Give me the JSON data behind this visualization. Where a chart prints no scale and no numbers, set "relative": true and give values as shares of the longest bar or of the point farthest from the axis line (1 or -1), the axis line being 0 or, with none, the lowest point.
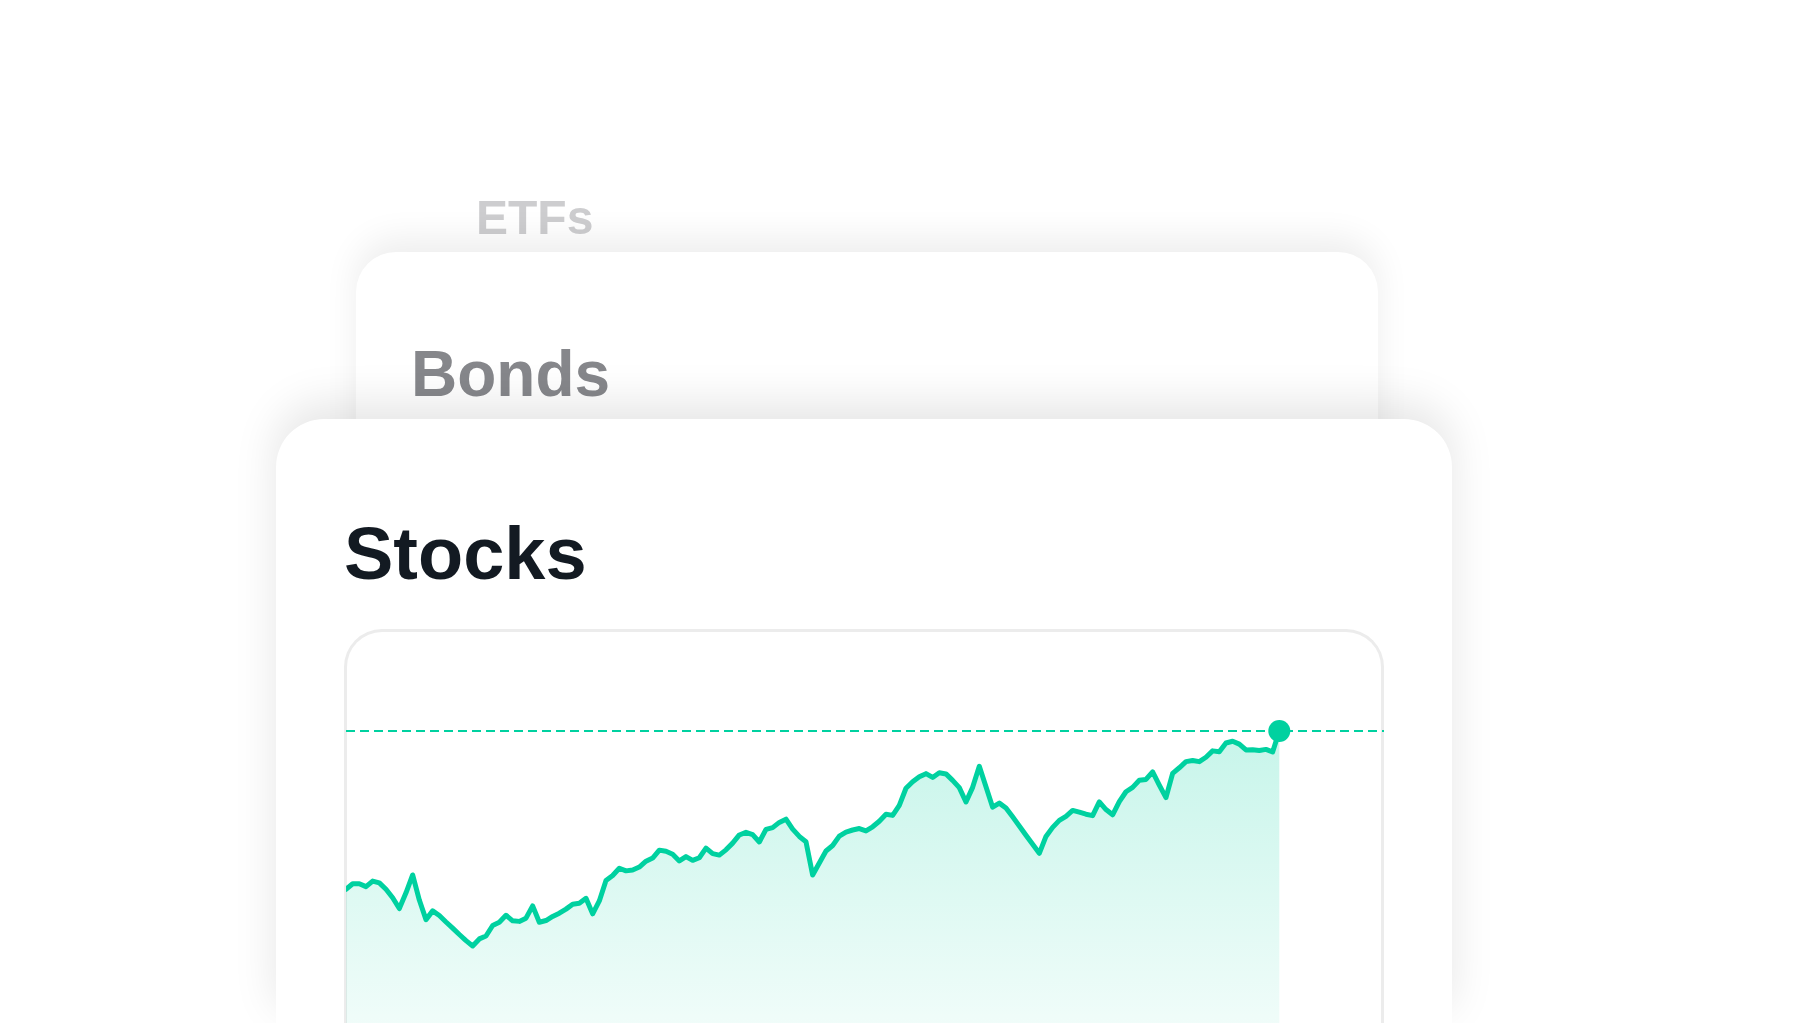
{
  "chart_data": {
    "type": "area",
    "title": "Stocks",
    "annotations": [
      "ETFs",
      "Bonds"
    ],
    "relative": true,
    "tick_labels": false,
    "categories": [
      null,
      null,
      null,
      null,
      null,
      null,
      null,
      null,
      null,
      null,
      null,
      null,
      null,
      null,
      null,
      null,
      null,
      null,
      null,
      null,
      null,
      null,
      null,
      null,
      null,
      null,
      null,
      null,
      null,
      null,
      null,
      null,
      null,
      null,
      null,
      null,
      null,
      null,
      null,
      null,
      null,
      null,
      null,
      null,
      null,
      null,
      null,
      null,
      null,
      null,
      null,
      null,
      null,
      null,
      null,
      null,
      null,
      null,
      null,
      null,
      null,
      null,
      null,
      null,
      null,
      null,
      null,
      null,
      null,
      null,
      null,
      null,
      null,
      null,
      null,
      null,
      null,
      null,
      null,
      null,
      null,
      null,
      null,
      null,
      null,
      null,
      null,
      null,
      null,
      null,
      null,
      null,
      null,
      null,
      null,
      null,
      null,
      null,
      null,
      null,
      null,
      null,
      null,
      null,
      null,
      null,
      null,
      null,
      null,
      null,
      null,
      null,
      null,
      null,
      null,
      null,
      null,
      null,
      null,
      null,
      null,
      null,
      null,
      null,
      null,
      null,
      null,
      null,
      null,
      null,
      null,
      null,
      null,
      null,
      null,
      null,
      null,
      null,
      null,
      null,
      null
    ],
    "series": [
      {
        "color": "#00d1a0",
        "values": [
          0.458,
          0.477,
          0.477,
          0.467,
          0.486,
          0.48,
          0.458,
          0.429,
          0.392,
          0.446,
          0.507,
          0.421,
          0.354,
          0.384,
          0.368,
          0.346,
          0.325,
          0.303,
          0.282,
          0.264,
          0.288,
          0.298,
          0.334,
          0.345,
          0.369,
          0.35,
          0.348,
          0.359,
          0.401,
          0.345,
          0.351,
          0.365,
          0.376,
          0.39,
          0.407,
          0.41,
          0.427,
          0.374,
          0.418,
          0.488,
          0.505,
          0.53,
          0.521,
          0.524,
          0.534,
          0.554,
          0.565,
          0.592,
          0.588,
          0.578,
          0.555,
          0.57,
          0.557,
          0.566,
          0.599,
          0.58,
          0.575,
          0.593,
          0.616,
          0.644,
          0.653,
          0.645,
          0.62,
          0.663,
          0.669,
          0.687,
          0.698,
          0.664,
          0.639,
          0.621,
          0.507,
          0.548,
          0.589,
          0.608,
          0.64,
          0.654,
          0.661,
          0.666,
          0.658,
          0.672,
          0.691,
          0.715,
          0.711,
          0.745,
          0.804,
          0.826,
          0.843,
          0.854,
          0.841,
          0.857,
          0.853,
          0.831,
          0.806,
          0.757,
          0.807,
          0.879,
          0.809,
          0.739,
          0.753,
          0.736,
          0.706,
          0.675,
          0.643,
          0.612,
          0.581,
          0.639,
          0.67,
          0.694,
          0.708,
          0.728,
          0.722,
          0.715,
          0.71,
          0.757,
          0.731,
          0.713,
          0.758,
          0.792,
          0.807,
          0.831,
          0.834,
          0.86,
          0.815,
          0.772,
          0.855,
          0.874,
          0.895,
          0.899,
          0.895,
          0.91,
          0.932,
          0.929,
          0.959,
          0.965,
          0.955,
          0.935,
          0.936,
          0.933,
          0.937,
          0.928,
          1
        ]
      }
    ],
    "ref_lines": [
      {
        "axis": "y",
        "value": 1,
        "color": "#00d1a0",
        "line_style": "dashed"
      }
    ]
  }
}
